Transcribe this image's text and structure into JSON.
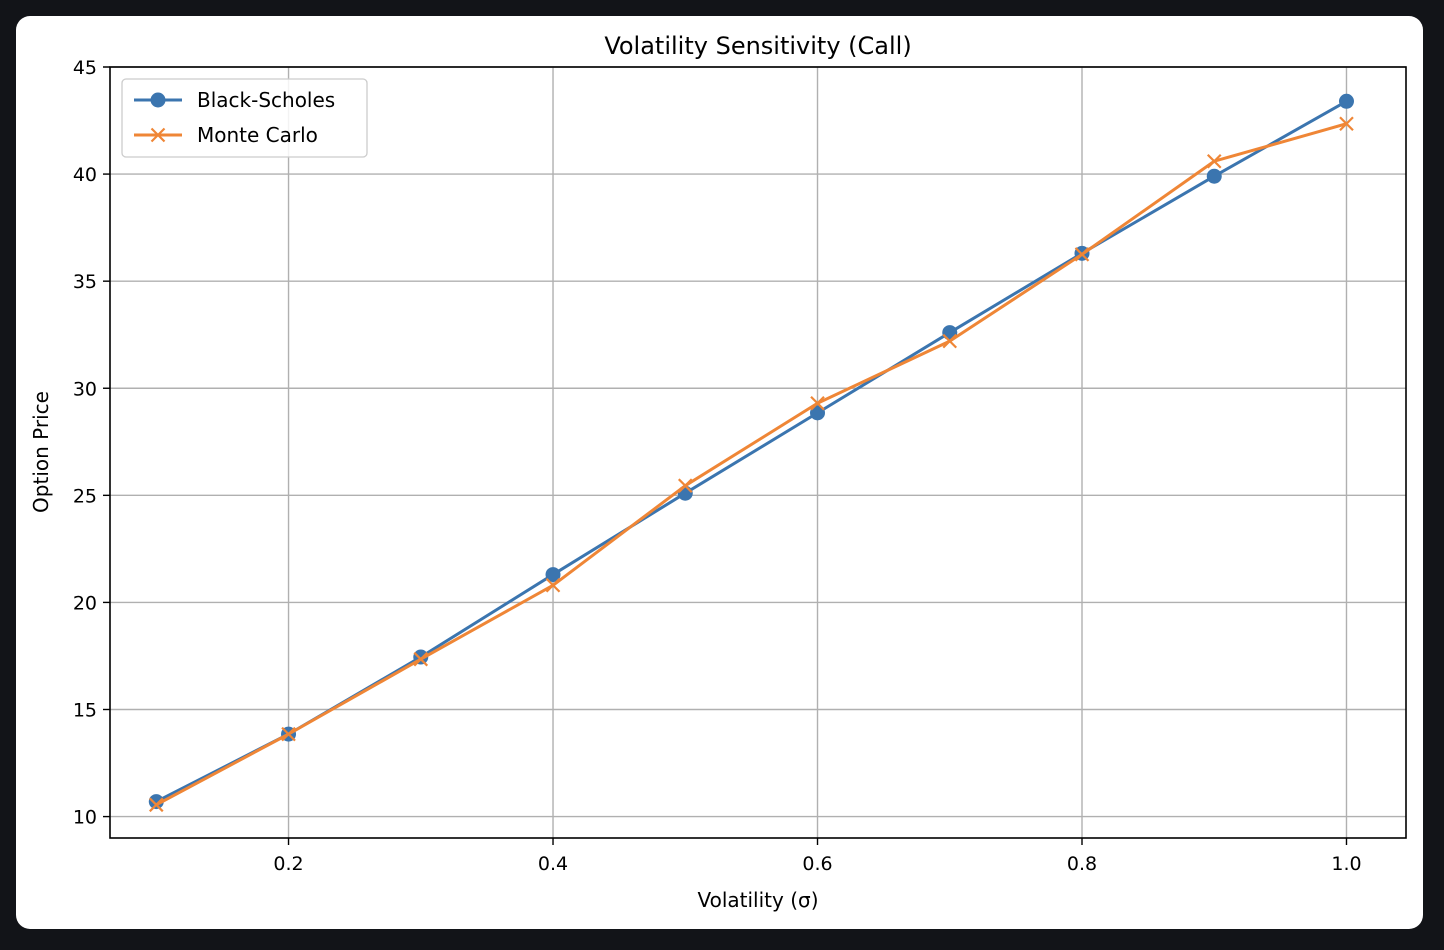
{
  "chart_data": {
    "type": "line",
    "title": "Volatility Sensitivity (Call)",
    "xlabel": "Volatility (σ)",
    "ylabel": "Option Price",
    "xlim": [
      0.065,
      1.045
    ],
    "ylim": [
      9.0,
      45.0
    ],
    "xticks": [
      0.2,
      0.4,
      0.6,
      0.8,
      1.0
    ],
    "xtick_labels": [
      "0.2",
      "0.4",
      "0.6",
      "0.8",
      "1.0"
    ],
    "yticks": [
      10,
      15,
      20,
      25,
      30,
      35,
      40,
      45
    ],
    "ytick_labels": [
      "10",
      "15",
      "20",
      "25",
      "30",
      "35",
      "40",
      "45"
    ],
    "grid": true,
    "legend_position": "top-left",
    "x": [
      0.1,
      0.2,
      0.3,
      0.4,
      0.5,
      0.6,
      0.7,
      0.8,
      0.9,
      1.0
    ],
    "series": [
      {
        "name": "Black-Scholes",
        "marker": "circle",
        "color": "#3b75af",
        "values": [
          10.7,
          13.85,
          17.45,
          21.3,
          25.1,
          28.85,
          32.6,
          36.3,
          39.9,
          43.4
        ]
      },
      {
        "name": "Monte Carlo",
        "marker": "x",
        "color": "#ef8636",
        "values": [
          10.55,
          13.85,
          17.35,
          20.8,
          25.45,
          29.3,
          32.2,
          36.25,
          40.6,
          42.35
        ]
      }
    ]
  }
}
